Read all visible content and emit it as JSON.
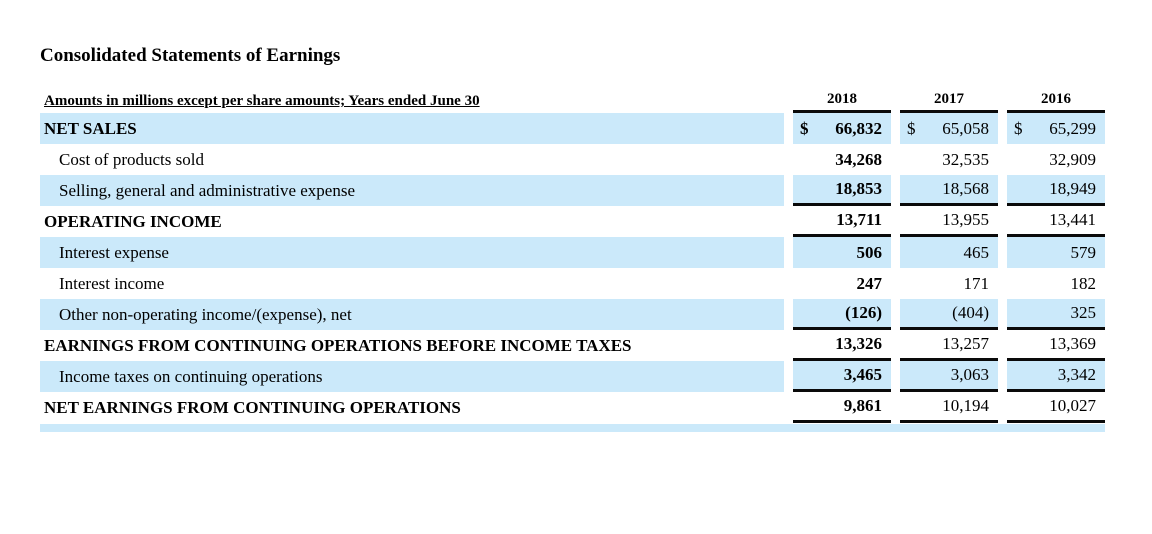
{
  "page": {
    "title": "Consolidated Statements of Earnings"
  },
  "accent_color": "#cbe9fa",
  "rule_color": "#0a0a0a",
  "table": {
    "subheader": "Amounts in millions except per share amounts; Years ended June 30",
    "years": [
      "2018",
      "2017",
      "2016"
    ],
    "rows": [
      {
        "label": "NET SALES",
        "dollar": "$",
        "values": [
          "66,832",
          "65,058",
          "65,299"
        ]
      },
      {
        "label": "Cost of products sold",
        "values": [
          "34,268",
          "32,535",
          "32,909"
        ]
      },
      {
        "label": "Selling, general and administrative expense",
        "values": [
          "18,853",
          "18,568",
          "18,949"
        ]
      },
      {
        "label": "OPERATING INCOME",
        "values": [
          "13,711",
          "13,955",
          "13,441"
        ]
      },
      {
        "label": "Interest expense",
        "values": [
          "506",
          "465",
          "579"
        ]
      },
      {
        "label": "Interest income",
        "values": [
          "247",
          "171",
          "182"
        ]
      },
      {
        "label": "Other non-operating income/(expense), net",
        "values": [
          "(126)",
          "(404)",
          "325"
        ]
      },
      {
        "label": "EARNINGS FROM CONTINUING OPERATIONS BEFORE INCOME TAXES",
        "values": [
          "13,326",
          "13,257",
          "13,369"
        ]
      },
      {
        "label": "Income taxes on continuing operations",
        "values": [
          "3,465",
          "3,063",
          "3,342"
        ]
      },
      {
        "label": "NET EARNINGS FROM CONTINUING OPERATIONS",
        "values": [
          "9,861",
          "10,194",
          "10,027"
        ]
      }
    ]
  }
}
